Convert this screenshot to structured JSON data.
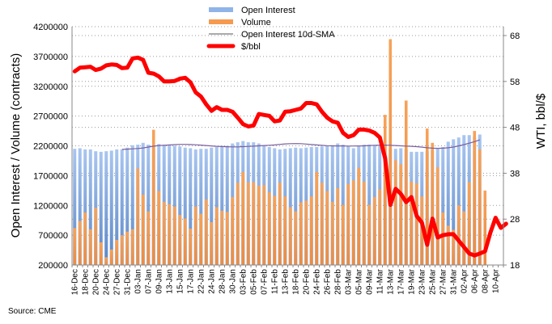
{
  "chart_data": {
    "type": "bar",
    "title": "",
    "source": "Source: CME",
    "ylabel": "Open Interest / Volume (contracts)",
    "y2label": "WTI, bbl/$",
    "ylim": [
      200000,
      4200000
    ],
    "y_ticks": [
      200000,
      700000,
      1200000,
      1700000,
      2200000,
      2700000,
      3200000,
      3700000,
      4200000
    ],
    "y_tick_labels": [
      "200000",
      "700000",
      "1200000",
      "1700000",
      "2200000",
      "2700000",
      "3200000",
      "3700000",
      "4200000"
    ],
    "y2lim": [
      18,
      68
    ],
    "y2_ticks": [
      18,
      28,
      38,
      48,
      58,
      68
    ],
    "y2_tick_labels": [
      "18",
      "28",
      "38",
      "48",
      "58",
      "68"
    ],
    "grid": true,
    "legend_position": "top-center",
    "x_tick_labels": [
      "16-Dec",
      "18-Dec",
      "20-Dec",
      "24-Dec",
      "27-Dec",
      "31-Dec",
      "03-Jan",
      "07-Jan",
      "09-Jan",
      "13-Jan",
      "15-Jan",
      "17-Jan",
      "22-Jan",
      "24-Jan",
      "28-Jan",
      "30-Jan",
      "03-Feb",
      "05-Feb",
      "07-Feb",
      "11-Feb",
      "13-Feb",
      "18-Feb",
      "20-Feb",
      "24-Feb",
      "26-Feb",
      "28-Feb",
      "03-Mar",
      "05-Mar",
      "09-Mar",
      "11-Mar",
      "13-Mar",
      "17-Mar",
      "19-Mar",
      "23-Mar",
      "25-Mar",
      "27-Mar",
      "31-Mar",
      "02-Apr",
      "06-Apr",
      "08-Apr",
      "10-Apr"
    ],
    "slot_count": 82,
    "series": [
      {
        "name": "Open Interest",
        "type": "bar",
        "color": "#8fb4e8",
        "values": [
          2150000,
          2160000,
          2140000,
          2140000,
          2110000,
          2100000,
          2110000,
          2120000,
          2140000,
          2140000,
          2170000,
          2210000,
          2220000,
          2250000,
          2220000,
          2210000,
          2230000,
          2220000,
          2220000,
          2200000,
          2190000,
          2170000,
          2160000,
          2140000,
          2150000,
          2150000,
          2170000,
          2180000,
          2200000,
          2200000,
          2240000,
          2260000,
          2280000,
          2260000,
          2260000,
          2240000,
          2200000,
          2180000,
          2160000,
          2140000,
          2150000,
          2160000,
          2170000,
          2160000,
          2170000,
          2180000,
          2180000,
          2190000,
          2200000,
          2210000,
          2240000,
          2220000,
          2190000,
          2160000,
          2190000,
          2220000,
          2220000,
          2210000,
          2200000,
          2180000,
          2150000,
          2150000,
          2160000,
          2140000,
          2100000,
          2100000,
          2100000,
          2110000,
          2130000,
          2150000,
          2180000,
          2270000,
          2310000,
          2340000,
          2380000,
          2380000,
          2350000,
          2390000
        ]
      },
      {
        "name": "Volume",
        "type": "bar",
        "color": "#f59a4e",
        "values": [
          820000,
          940000,
          1080000,
          800000,
          1160000,
          580000,
          330000,
          460000,
          620000,
          700000,
          760000,
          800000,
          1820000,
          1380000,
          1100000,
          2470000,
          1440000,
          1260000,
          1220000,
          1180000,
          1040000,
          980000,
          810000,
          1180000,
          1060000,
          1300000,
          920000,
          1170000,
          1110000,
          1090000,
          1340000,
          1580000,
          1760000,
          1590000,
          1590000,
          1530000,
          1540000,
          1420000,
          1360000,
          1580000,
          1350000,
          1170000,
          1100000,
          1250000,
          1280000,
          1350000,
          1760000,
          1580000,
          1440000,
          1260000,
          1490000,
          1210000,
          1560000,
          1620000,
          1830000,
          1600000,
          1210000,
          1340000,
          1470000,
          2720000,
          3990000,
          1960000,
          1890000,
          2960000,
          1600000,
          1570000,
          1350000,
          2490000,
          2250000,
          1840000,
          1080000,
          860000,
          790000,
          1200000,
          1100000,
          1590000,
          2450000,
          2140000,
          1450000
        ]
      },
      {
        "name": "Open Interest 10d-SMA",
        "type": "line",
        "color": "#7a5fa0",
        "start_index": 9,
        "values": [
          2140000,
          2145000,
          2150000,
          2155000,
          2165000,
          2180000,
          2195000,
          2205000,
          2210000,
          2215000,
          2220000,
          2225000,
          2225000,
          2222000,
          2218000,
          2212000,
          2205000,
          2198000,
          2192000,
          2188000,
          2185000,
          2183000,
          2183000,
          2186000,
          2190000,
          2195000,
          2200000,
          2205000,
          2210000,
          2215000,
          2225000,
          2232000,
          2236000,
          2238000,
          2236000,
          2230000,
          2222000,
          2215000,
          2208000,
          2203000,
          2200000,
          2198000,
          2198000,
          2196000,
          2197000,
          2198000,
          2200000,
          2205000,
          2210000,
          2212000,
          2212000,
          2210000,
          2205000,
          2200000,
          2196000,
          2192000,
          2186000,
          2178000,
          2168000,
          2160000,
          2158000,
          2160000,
          2168000,
          2180000,
          2200000,
          2220000,
          2245000,
          2270000,
          2300000
        ]
      },
      {
        "name": "$/bbl",
        "type": "line",
        "axis": "right",
        "color": "#ff0000",
        "values": [
          60.2,
          61.0,
          61.1,
          61.2,
          60.5,
          60.8,
          61.5,
          61.7,
          61.6,
          60.9,
          61.0,
          63.0,
          63.2,
          62.7,
          59.9,
          59.7,
          59.1,
          58.0,
          58.0,
          58.1,
          58.6,
          58.8,
          57.8,
          55.6,
          54.7,
          53.0,
          51.6,
          52.4,
          51.8,
          51.8,
          51.4,
          50.1,
          48.7,
          48.2,
          48.4,
          50.9,
          50.7,
          50.5,
          49.3,
          49.5,
          51.4,
          51.5,
          51.8,
          52.1,
          53.3,
          53.3,
          53.0,
          51.4,
          50.1,
          49.3,
          49.0,
          46.8,
          45.9,
          46.3,
          47.5,
          47.5,
          47.3,
          46.8,
          45.8,
          41.3,
          31.1,
          34.6,
          33.5,
          31.7,
          32.8,
          28.7,
          27.2,
          22.4,
          28.1,
          24.0,
          24.5,
          24.7,
          24.7,
          23.3,
          21.9,
          20.5,
          20.1,
          20.5,
          21.0,
          25.0,
          28.3,
          26.1,
          27.0
        ]
      }
    ]
  },
  "legend": {
    "items": [
      {
        "label": "Open Interest",
        "color": "#8fb4e8",
        "kind": "bar"
      },
      {
        "label": "Volume",
        "color": "#f59a4e",
        "kind": "bar"
      },
      {
        "label": "Open Interest 10d-SMA",
        "color": "#7a5fa0",
        "kind": "line"
      },
      {
        "label": "$/bbl",
        "color": "#ff0000",
        "kind": "thick-line"
      }
    ]
  }
}
